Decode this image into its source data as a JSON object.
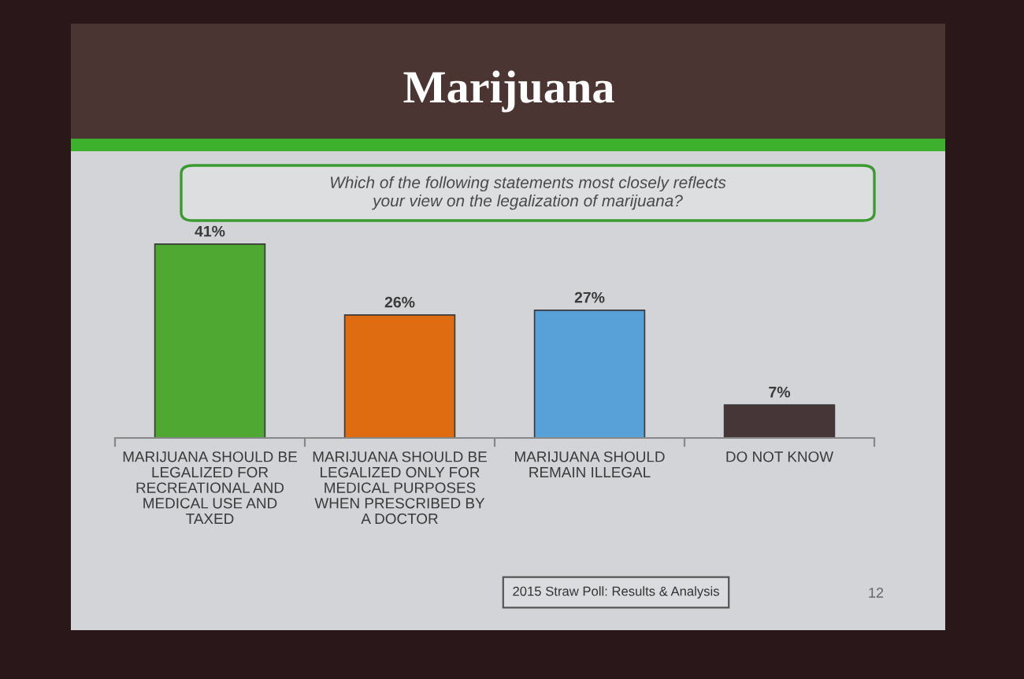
{
  "chart_data": {
    "type": "bar",
    "title": "Marijuana",
    "subtitle": "Which of the following statements most closely reflects\nyour view on the legalization of marijuana?",
    "categories": [
      "MARIJUANA SHOULD BE\nLEGALIZED FOR\nRECREATIONAL AND\nMEDICAL USE AND\nTAXED",
      "MARIJUANA SHOULD BE\nLEGALIZED ONLY FOR\nMEDICAL PURPOSES\nWHEN PRESCRIBED BY\nA DOCTOR",
      "MARIJUANA SHOULD\nREMAIN ILLEGAL",
      "DO NOT KNOW"
    ],
    "values": [
      41,
      26,
      27,
      7
    ],
    "colors": [
      "#4ea832",
      "#e06c12",
      "#58a0d8",
      "#463638"
    ],
    "value_labels": [
      "41%",
      "26%",
      "27%",
      "7%"
    ],
    "annotations": [
      "2015 Straw Poll: Results & Analysis",
      "12"
    ]
  }
}
